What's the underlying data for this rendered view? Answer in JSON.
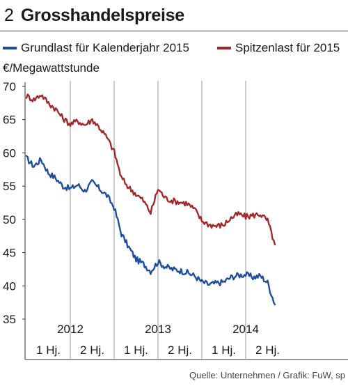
{
  "header": {
    "number": "2",
    "title": "Grosshandelspreise"
  },
  "chart_data": {
    "type": "line",
    "title": "Grosshandelspreise",
    "ylabel": "€/Megawattstunde",
    "ylim": [
      35,
      70
    ],
    "yticks": [
      35,
      40,
      45,
      50,
      55,
      60,
      65,
      70
    ],
    "x_range": [
      "2012-01",
      "2014-11"
    ],
    "year_labels": [
      "2012",
      "2013",
      "2014"
    ],
    "half_year_labels": [
      "1 Hj.",
      "2 Hj.",
      "1 Hj.",
      "2 Hj.",
      "1 Hj.",
      "2 Hj."
    ],
    "grid": "vertical",
    "legend_position": "top",
    "series": [
      {
        "name": "Grundlast für Kalenderjahr 2015",
        "color": "#1f4f9c",
        "points": [
          [
            "2012-01",
            59.2
          ],
          [
            "2012-02",
            58.0
          ],
          [
            "2012-03",
            59.0
          ],
          [
            "2012-04",
            57.0
          ],
          [
            "2012-05",
            56.2
          ],
          [
            "2012-06",
            55.0
          ],
          [
            "2012-07",
            54.6
          ],
          [
            "2012-08",
            55.2
          ],
          [
            "2012-09",
            54.3
          ],
          [
            "2012-10",
            55.6
          ],
          [
            "2012-11",
            54.6
          ],
          [
            "2012-12",
            53.6
          ],
          [
            "2013-01",
            51.8
          ],
          [
            "2013-02",
            47.8
          ],
          [
            "2013-03",
            45.8
          ],
          [
            "2013-04",
            44.0
          ],
          [
            "2013-05",
            43.3
          ],
          [
            "2013-06",
            42.2
          ],
          [
            "2013-07",
            43.6
          ],
          [
            "2013-08",
            42.9
          ],
          [
            "2013-09",
            42.5
          ],
          [
            "2013-10",
            42.3
          ],
          [
            "2013-11",
            42.0
          ],
          [
            "2013-12",
            41.5
          ],
          [
            "2014-01",
            40.6
          ],
          [
            "2014-02",
            40.2
          ],
          [
            "2014-03",
            40.4
          ],
          [
            "2014-04",
            40.6
          ],
          [
            "2014-05",
            41.3
          ],
          [
            "2014-06",
            41.6
          ],
          [
            "2014-07",
            41.7
          ],
          [
            "2014-08",
            41.3
          ],
          [
            "2014-09",
            41.5
          ],
          [
            "2014-10",
            40.5
          ],
          [
            "2014-11",
            37.2
          ]
        ]
      },
      {
        "name": "Spitzenlast für 2015",
        "color": "#a3282c",
        "points": [
          [
            "2012-01",
            68.6
          ],
          [
            "2012-02",
            68.0
          ],
          [
            "2012-03",
            68.8
          ],
          [
            "2012-04",
            67.5
          ],
          [
            "2012-05",
            66.6
          ],
          [
            "2012-06",
            65.2
          ],
          [
            "2012-07",
            64.3
          ],
          [
            "2012-08",
            64.8
          ],
          [
            "2012-09",
            64.2
          ],
          [
            "2012-10",
            65.0
          ],
          [
            "2012-11",
            63.8
          ],
          [
            "2012-12",
            62.3
          ],
          [
            "2013-01",
            60.2
          ],
          [
            "2013-02",
            56.2
          ],
          [
            "2013-03",
            54.8
          ],
          [
            "2013-04",
            53.8
          ],
          [
            "2013-05",
            52.8
          ],
          [
            "2013-06",
            51.0
          ],
          [
            "2013-07",
            54.6
          ],
          [
            "2013-08",
            53.2
          ],
          [
            "2013-09",
            52.8
          ],
          [
            "2013-10",
            52.6
          ],
          [
            "2013-11",
            52.4
          ],
          [
            "2013-12",
            51.5
          ],
          [
            "2014-01",
            49.8
          ],
          [
            "2014-02",
            49.2
          ],
          [
            "2014-03",
            49.0
          ],
          [
            "2014-04",
            49.2
          ],
          [
            "2014-05",
            50.2
          ],
          [
            "2014-06",
            50.8
          ],
          [
            "2014-07",
            50.4
          ],
          [
            "2014-08",
            50.6
          ],
          [
            "2014-09",
            50.8
          ],
          [
            "2014-10",
            49.8
          ],
          [
            "2014-11",
            46.2
          ]
        ]
      }
    ]
  },
  "source": "Quelle: Unternehmen / Grafik: FuW, sp"
}
